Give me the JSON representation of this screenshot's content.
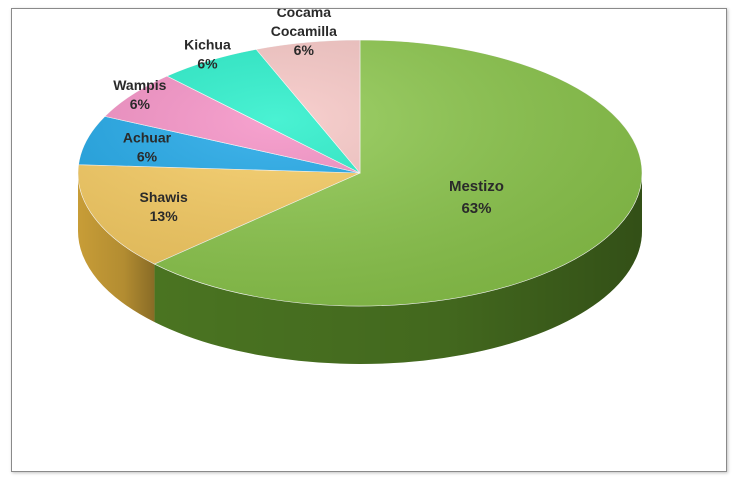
{
  "chart_data": {
    "type": "pie",
    "style": "3d",
    "categories": [
      "Mestizo",
      "Shawis",
      "Achuar",
      "Wampis",
      "Kichua",
      "Cocama Cocamilla"
    ],
    "values": [
      63,
      13,
      6,
      6,
      6,
      6
    ],
    "labels": [
      {
        "name": "Mestizo",
        "pct": "63%"
      },
      {
        "name": "Shawis",
        "pct": "13%"
      },
      {
        "name": "Achuar",
        "pct": "6%"
      },
      {
        "name": "Wampis",
        "pct": "6%"
      },
      {
        "name": "Kichua",
        "pct": "6%"
      },
      {
        "name_lines": [
          "Cocama",
          "Cocamilla"
        ],
        "pct": "6%"
      }
    ],
    "colors": [
      "#8cc84b",
      "#f8cc5f",
      "#1aa6e8",
      "#f58ec4",
      "#22efc9",
      "#f7c6c4"
    ],
    "side_colors": [
      "#4e7a23",
      "#d2a53a",
      "#0f6fa6",
      "#b85f8e",
      "#14a88b",
      "#c99391"
    ],
    "title": "",
    "legend": "none"
  }
}
